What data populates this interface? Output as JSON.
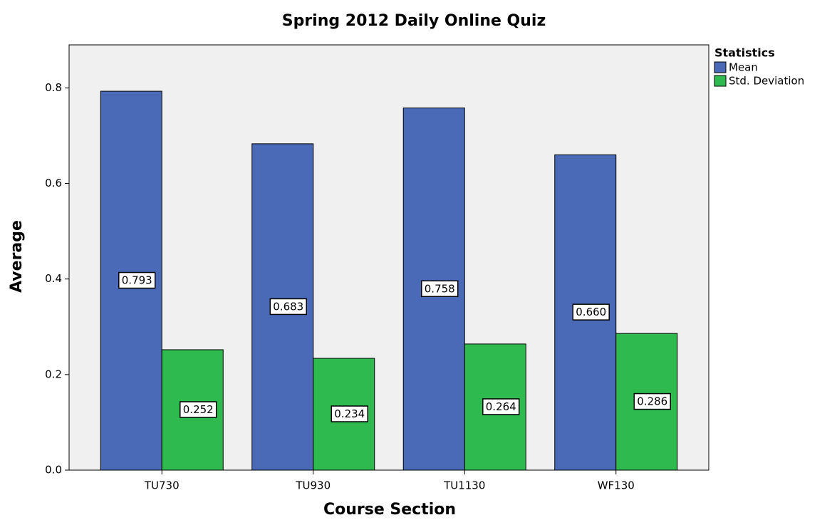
{
  "chart_data": {
    "type": "bar",
    "title": "Spring 2012 Daily Online Quiz",
    "x_label": "Course Section",
    "y_label": "Average",
    "categories": [
      "TU730",
      "TU930",
      "TU1130",
      "WF130"
    ],
    "series": [
      {
        "name": "Mean",
        "color": "#4a6ab8",
        "values": [
          0.793,
          0.683,
          0.758,
          0.66
        ],
        "value_labels": [
          "0.793",
          "0.683",
          "0.758",
          "0.660"
        ]
      },
      {
        "name": "Std. Deviation",
        "color": "#2fba50",
        "values": [
          0.252,
          0.234,
          0.264,
          0.286
        ],
        "value_labels": [
          "0.252",
          "0.234",
          "0.264",
          "0.286"
        ]
      }
    ],
    "legend_title": "Statistics",
    "legend": "right",
    "ylim": [
      0,
      0.89
    ],
    "yticks": [
      {
        "value": 0,
        "label": "0.0"
      },
      0.2,
      0.4,
      0.6,
      0.8
    ],
    "grid": false
  }
}
